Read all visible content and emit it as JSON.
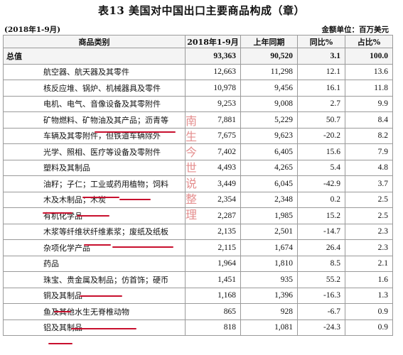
{
  "title": "表13  美国对中国出口主要商品构成（章）",
  "period": "(2018年1-9月)",
  "unit": "金额单位：百万美元",
  "headers": [
    "商品类别",
    "2018年1-9月",
    "上年同期",
    "同比%",
    "占比%"
  ],
  "rows": [
    {
      "category": "总值",
      "current": "93,363",
      "prior": "90,520",
      "yoy": "3.1",
      "share": "100.0"
    },
    {
      "category": "航空器、航天器及其零件",
      "current": "12,663",
      "prior": "11,298",
      "yoy": "12.1",
      "share": "13.6"
    },
    {
      "category": "核反应堆、锅炉、机械器具及零件",
      "current": "10,978",
      "prior": "9,456",
      "yoy": "16.1",
      "share": "11.8"
    },
    {
      "category": "电机、电气、音像设备及其零附件",
      "current": "9,253",
      "prior": "9,008",
      "yoy": "2.7",
      "share": "9.9"
    },
    {
      "category": "矿物燃料、矿物油及其产品；沥青等",
      "current": "7,881",
      "prior": "5,229",
      "yoy": "50.7",
      "share": "8.4"
    },
    {
      "category": "车辆及其零附件，但铁道车辆除外",
      "current": "7,675",
      "prior": "9,623",
      "yoy": "-20.2",
      "share": "8.2"
    },
    {
      "category": "光学、照相、医疗等设备及零附件",
      "current": "7,402",
      "prior": "6,405",
      "yoy": "15.6",
      "share": "7.9"
    },
    {
      "category": "塑料及其制品",
      "current": "4,493",
      "prior": "4,265",
      "yoy": "5.4",
      "share": "4.8"
    },
    {
      "category": "油籽；子仁；工业或药用植物；饲料",
      "current": "3,449",
      "prior": "6,045",
      "yoy": "-42.9",
      "share": "3.7"
    },
    {
      "category": "木及木制品；木炭",
      "current": "2,354",
      "prior": "2,348",
      "yoy": "0.2",
      "share": "2.5"
    },
    {
      "category": "有机化学品",
      "current": "2,287",
      "prior": "1,985",
      "yoy": "15.2",
      "share": "2.5"
    },
    {
      "category": "木浆等纤维状纤维素浆；废纸及纸板",
      "current": "2,135",
      "prior": "2,501",
      "yoy": "-14.7",
      "share": "2.3"
    },
    {
      "category": "杂项化学产品",
      "current": "2,115",
      "prior": "1,674",
      "yoy": "26.4",
      "share": "2.3"
    },
    {
      "category": "药品",
      "current": "1,964",
      "prior": "1,810",
      "yoy": "8.5",
      "share": "2.1"
    },
    {
      "category": "珠宝、贵金属及制品；仿首饰；硬币",
      "current": "1,451",
      "prior": "935",
      "yoy": "55.2",
      "share": "1.6"
    },
    {
      "category": "铜及其制品",
      "current": "1,168",
      "prior": "1,396",
      "yoy": "-16.3",
      "share": "1.3"
    },
    {
      "category": "鱼及其他水生无脊椎动物",
      "current": "865",
      "prior": "928",
      "yoy": "-6.7",
      "share": "0.9"
    },
    {
      "category": "铝及其制品",
      "current": "818",
      "prior": "1,081",
      "yoy": "-24.3",
      "share": "0.9"
    }
  ],
  "watermark": "南生今世说整理",
  "accent_color": "#c8102e"
}
